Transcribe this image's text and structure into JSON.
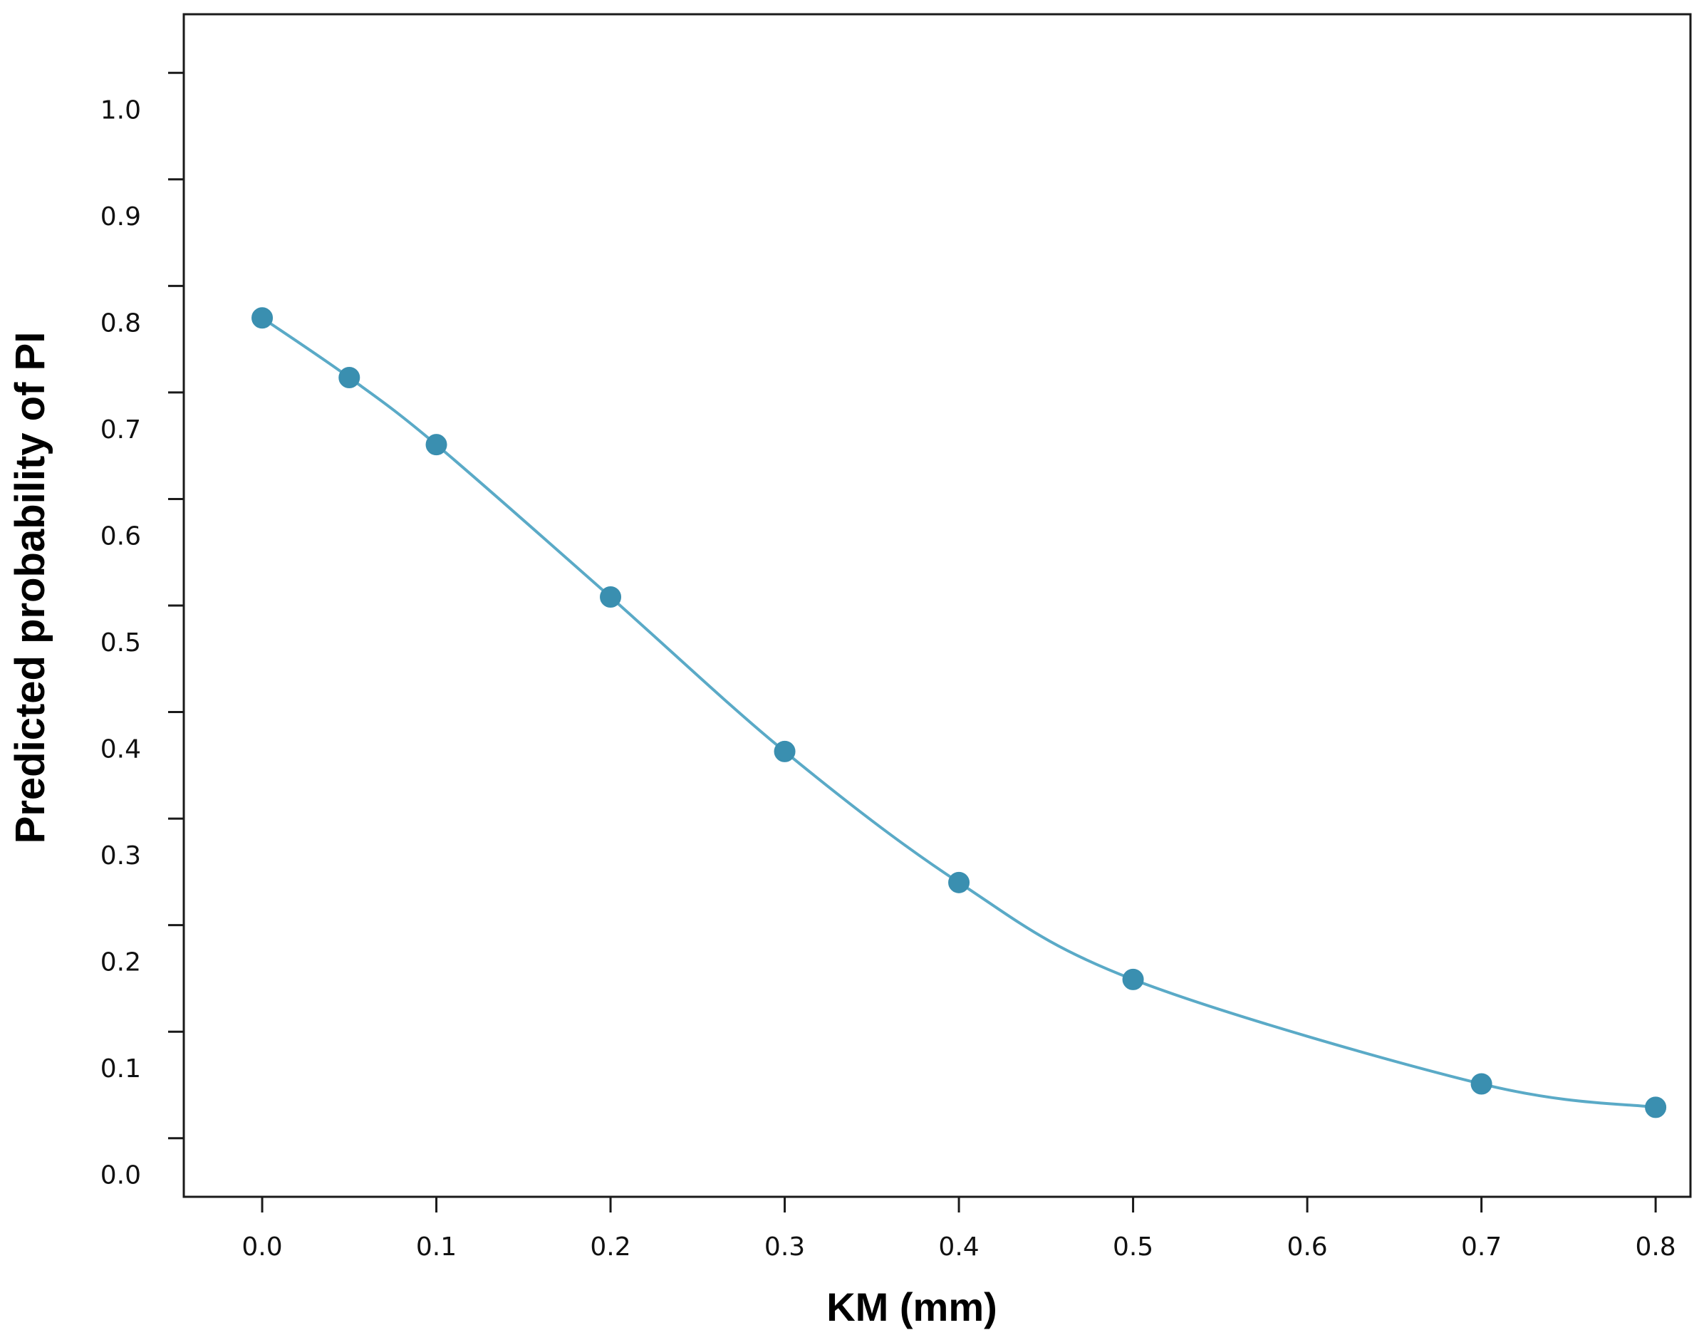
{
  "chart_data": {
    "type": "line",
    "title": "",
    "xlabel": "KM (mm)",
    "ylabel": "Predicted probability of PI",
    "xlim": [
      -0.045,
      0.82
    ],
    "ylim": [
      -0.055,
      1.055
    ],
    "x_ticks": [
      "0.0",
      "0.1",
      "0.2",
      "0.3",
      "0.4",
      "0.5",
      "0.6",
      "0.7",
      "0.8"
    ],
    "y_ticks": [
      "0.0",
      "0.1",
      "0.2",
      "0.3",
      "0.4",
      "0.5",
      "0.6",
      "0.7",
      "0.8",
      "0.9",
      "1.0"
    ],
    "grid": false,
    "line_color": "#5aaac7",
    "marker_color": "#3a8fb0",
    "series": [
      {
        "x": [
          0.0,
          0.05,
          0.1,
          0.2,
          0.3,
          0.4,
          0.5,
          0.7,
          0.8
        ],
        "y": [
          0.77,
          0.714,
          0.651,
          0.508,
          0.363,
          0.24,
          0.149,
          0.051,
          0.029
        ]
      }
    ]
  }
}
